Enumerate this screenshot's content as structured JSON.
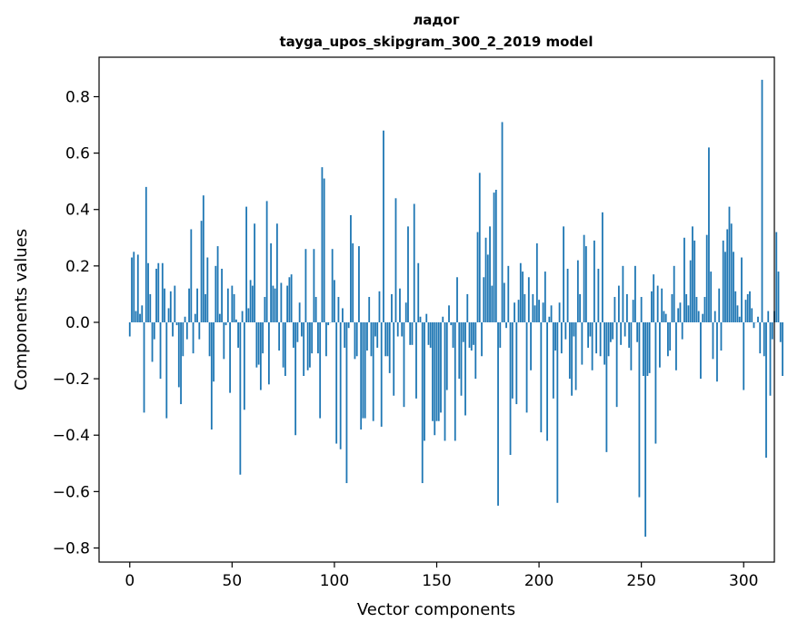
{
  "chart_data": {
    "type": "bar",
    "title_line1": "ладог",
    "title_line2": "tayga_upos_skipgram_300_2_2019 model",
    "xlabel": "Vector components",
    "ylabel": "Components values",
    "xlim": [
      -15,
      315
    ],
    "ylim": [
      -0.85,
      0.94
    ],
    "xticks": [
      0,
      50,
      100,
      150,
      200,
      250,
      300
    ],
    "xtick_labels": [
      "0",
      "50",
      "100",
      "150",
      "200",
      "250",
      "300"
    ],
    "yticks": [
      0.8,
      0.6,
      0.4,
      0.2,
      0.0,
      -0.2,
      -0.4,
      -0.6,
      -0.8
    ],
    "ytick_labels": [
      "0.8",
      "0.6",
      "0.4",
      "0.2",
      "0.0",
      "−0.2",
      "−0.4",
      "−0.6",
      "−0.8"
    ],
    "bar_color": "#1f77b4",
    "values": [
      -0.05,
      0.23,
      0.25,
      0.04,
      0.24,
      0.03,
      0.06,
      -0.32,
      0.48,
      0.21,
      0.1,
      -0.14,
      -0.06,
      0.19,
      0.21,
      -0.2,
      0.21,
      0.12,
      -0.34,
      0.05,
      0.11,
      -0.05,
      0.13,
      -0.01,
      -0.23,
      -0.29,
      -0.12,
      0.02,
      -0.06,
      0.12,
      0.33,
      -0.11,
      0.03,
      0.12,
      -0.06,
      0.36,
      0.45,
      0.1,
      0.23,
      -0.12,
      -0.38,
      -0.21,
      0.2,
      0.27,
      0.03,
      0.19,
      -0.13,
      -0.01,
      0.12,
      -0.25,
      0.13,
      0.1,
      0.01,
      -0.09,
      -0.54,
      0.04,
      -0.31,
      0.41,
      0.05,
      0.15,
      0.13,
      0.35,
      -0.16,
      -0.15,
      -0.24,
      -0.11,
      0.09,
      0.43,
      -0.22,
      0.28,
      0.13,
      0.12,
      0.35,
      -0.1,
      0.14,
      -0.16,
      -0.19,
      0.13,
      0.16,
      0.17,
      -0.09,
      -0.4,
      -0.07,
      0.07,
      -0.05,
      -0.19,
      0.26,
      -0.17,
      -0.16,
      -0.11,
      0.26,
      0.09,
      -0.11,
      -0.34,
      0.55,
      0.51,
      -0.12,
      -0.01,
      0.0,
      0.26,
      0.15,
      -0.43,
      0.09,
      -0.45,
      0.05,
      -0.09,
      -0.57,
      -0.02,
      0.38,
      0.28,
      -0.13,
      -0.12,
      0.27,
      -0.38,
      -0.34,
      -0.34,
      -0.1,
      0.09,
      -0.12,
      -0.35,
      -0.05,
      -0.09,
      0.11,
      -0.37,
      0.68,
      -0.12,
      -0.12,
      -0.18,
      0.1,
      -0.26,
      0.44,
      -0.05,
      0.12,
      -0.05,
      -0.3,
      0.07,
      0.34,
      -0.08,
      -0.08,
      0.42,
      -0.27,
      0.21,
      0.02,
      -0.57,
      -0.42,
      0.03,
      -0.08,
      -0.09,
      -0.35,
      -0.4,
      -0.35,
      -0.35,
      -0.32,
      0.02,
      -0.42,
      -0.24,
      0.06,
      -0.01,
      -0.09,
      -0.42,
      0.16,
      -0.2,
      -0.26,
      -0.07,
      -0.33,
      0.1,
      -0.09,
      -0.1,
      -0.08,
      -0.2,
      0.32,
      0.53,
      -0.12,
      0.16,
      0.3,
      0.24,
      0.34,
      0.13,
      0.46,
      0.47,
      -0.65,
      -0.09,
      0.71,
      0.14,
      -0.02,
      0.2,
      -0.47,
      -0.27,
      0.07,
      -0.29,
      0.08,
      0.21,
      0.18,
      0.1,
      -0.32,
      0.16,
      -0.17,
      0.1,
      0.06,
      0.28,
      0.08,
      -0.39,
      0.07,
      0.18,
      -0.42,
      0.02,
      0.06,
      -0.27,
      -0.1,
      -0.64,
      0.07,
      -0.11,
      0.34,
      -0.06,
      0.19,
      -0.2,
      -0.26,
      -0.05,
      -0.24,
      0.22,
      0.1,
      -0.15,
      0.31,
      0.27,
      -0.09,
      -0.05,
      -0.17,
      0.29,
      -0.11,
      0.19,
      -0.12,
      0.39,
      -0.15,
      -0.46,
      -0.12,
      -0.07,
      -0.06,
      0.09,
      -0.3,
      0.13,
      -0.08,
      0.2,
      -0.05,
      0.1,
      -0.09,
      -0.17,
      0.08,
      0.2,
      -0.07,
      -0.62,
      0.09,
      -0.19,
      -0.76,
      -0.19,
      -0.18,
      0.11,
      0.17,
      -0.43,
      0.13,
      -0.16,
      0.12,
      0.04,
      0.03,
      -0.12,
      -0.1,
      0.1,
      0.2,
      -0.17,
      0.05,
      0.07,
      -0.06,
      0.3,
      0.1,
      0.06,
      0.22,
      0.34,
      0.29,
      0.09,
      0.04,
      -0.2,
      0.03,
      0.09,
      0.31,
      0.62,
      0.18,
      -0.13,
      0.04,
      -0.21,
      0.12,
      -0.1,
      0.29,
      0.25,
      0.33,
      0.41,
      0.35,
      0.25,
      0.11,
      0.06,
      0.02,
      0.23,
      -0.24,
      0.08,
      0.1,
      0.11,
      0.05,
      -0.02,
      0.0,
      0.02,
      -0.11,
      0.86,
      -0.12,
      -0.48,
      0.04,
      -0.26,
      -0.06,
      0.04,
      0.32,
      0.18,
      -0.07,
      -0.19
    ]
  }
}
